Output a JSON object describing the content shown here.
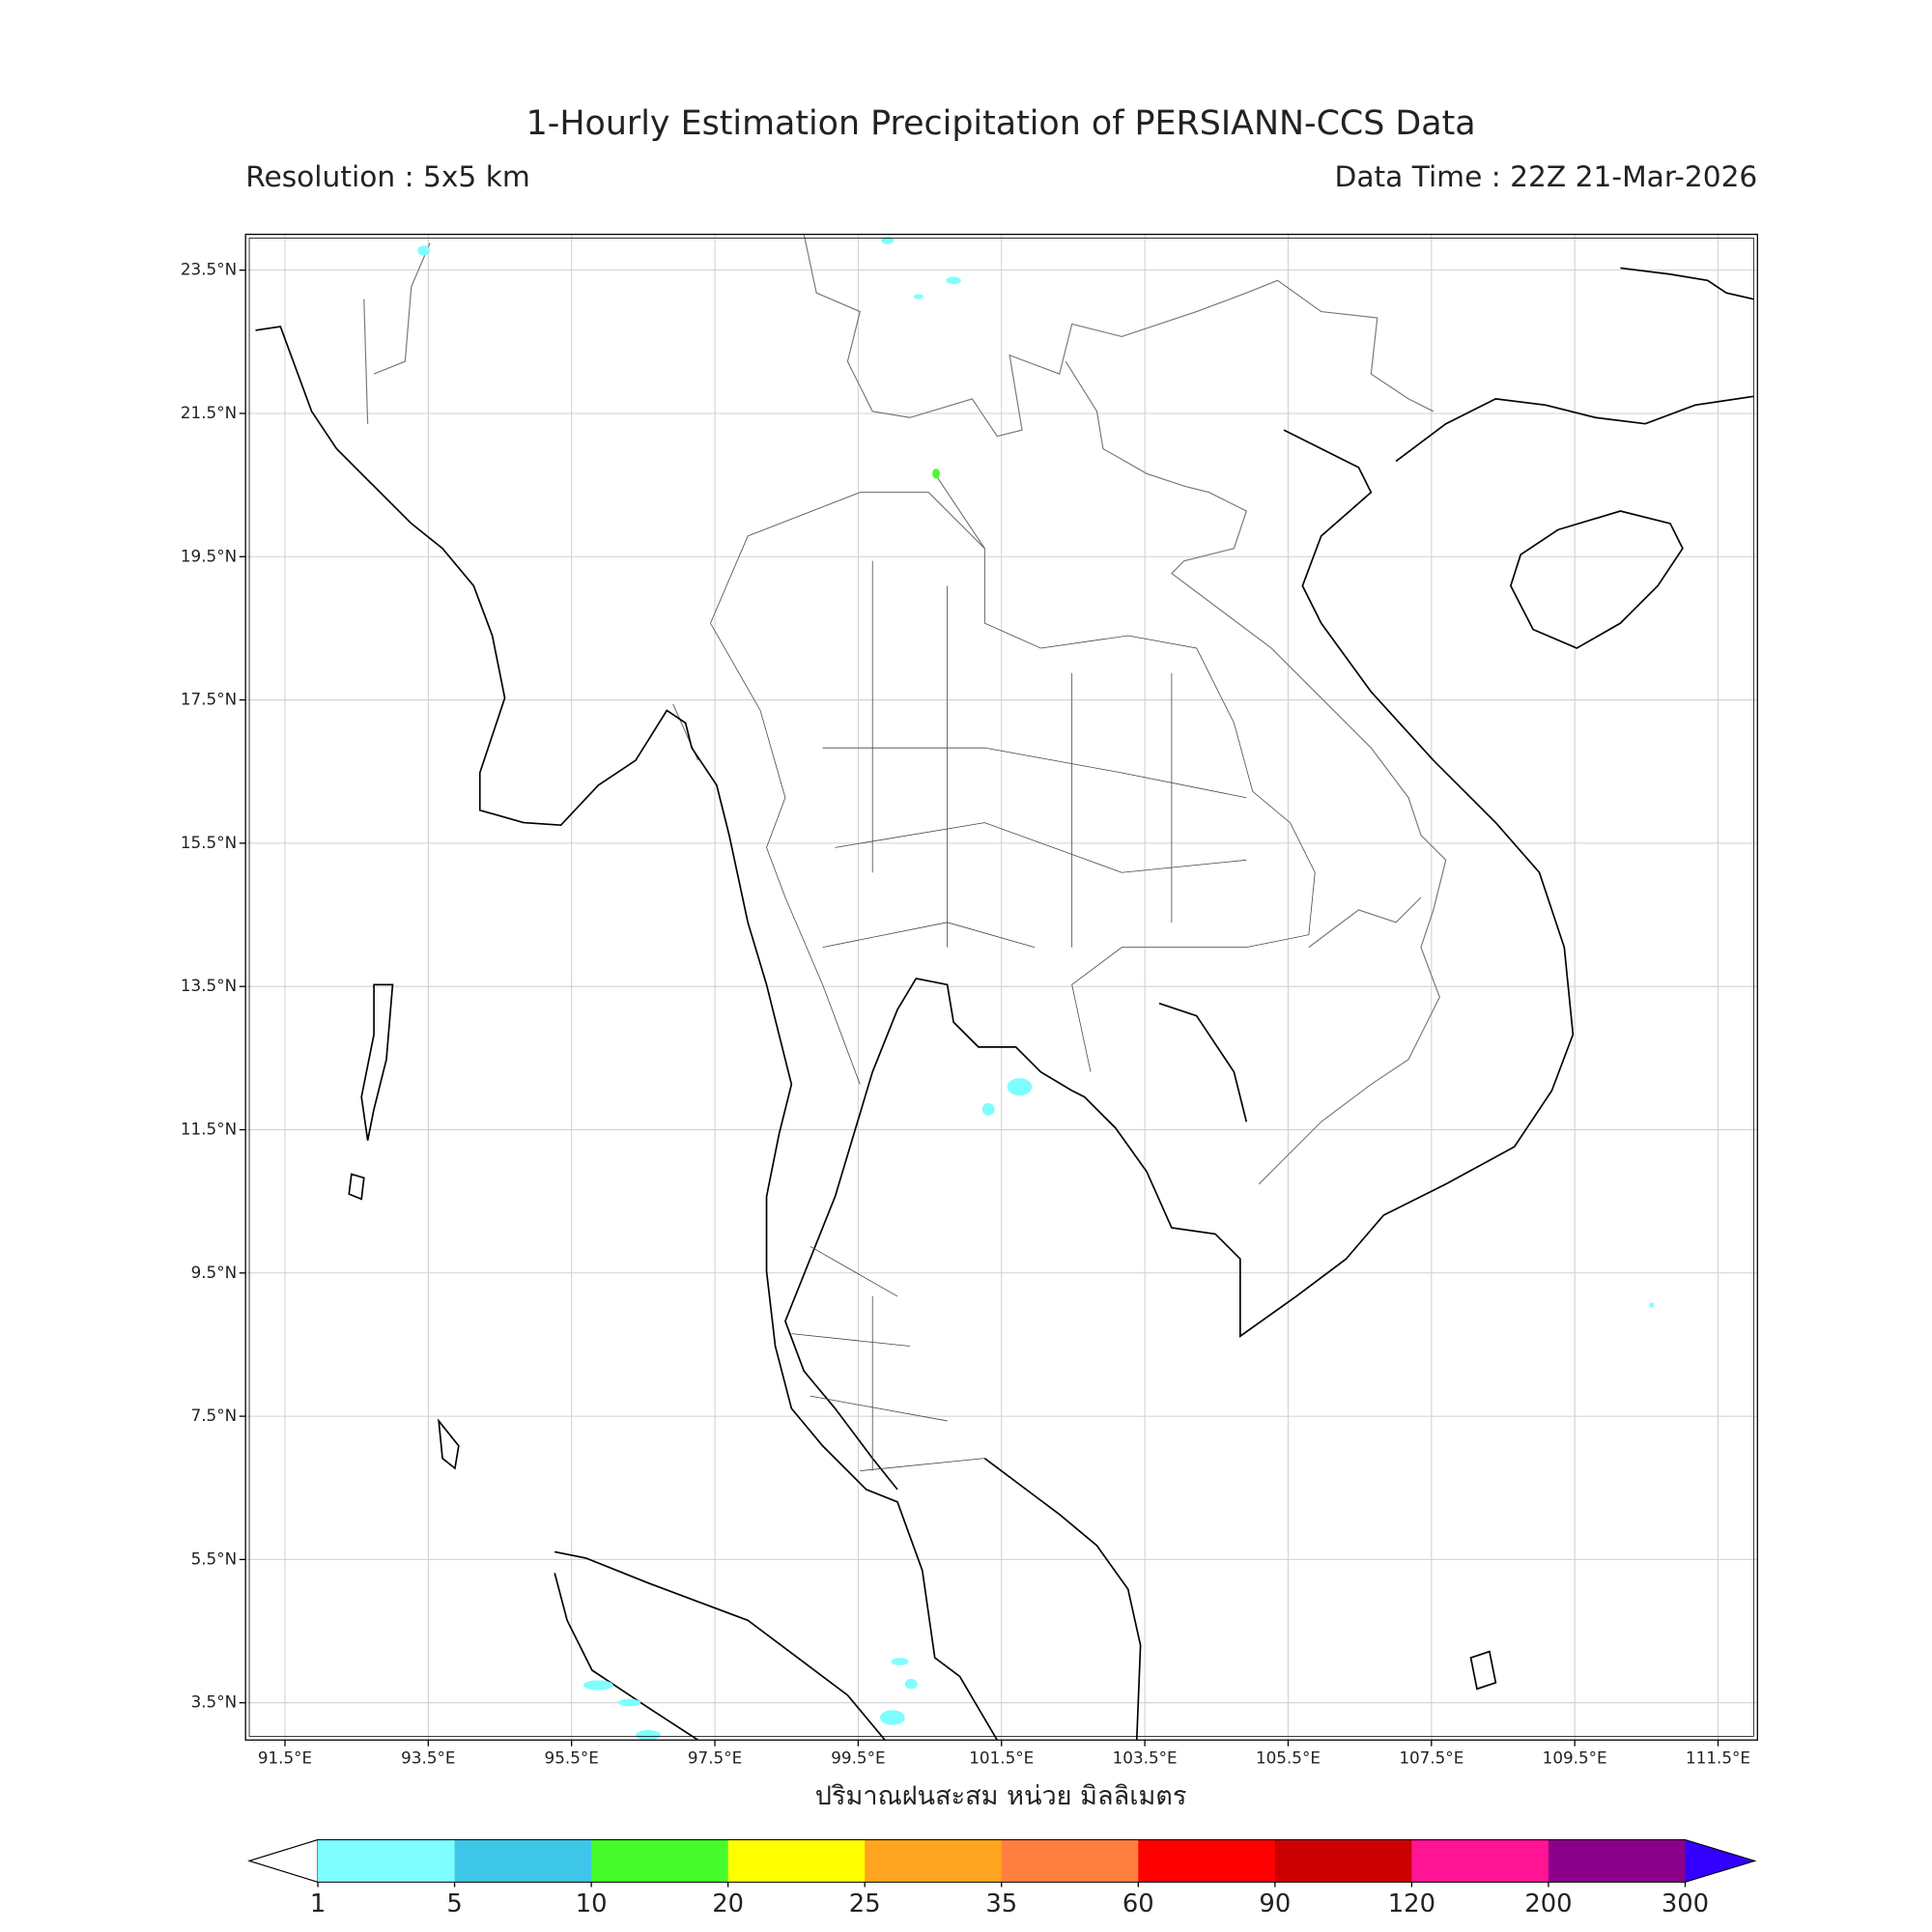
{
  "map": {
    "title": "1-Hourly Estimation Precipitation of PERSIANN-CCS Data",
    "resolution": "Resolution : 5x5 km",
    "data_time": "Data Time : 22Z 21-Mar-2026",
    "lonlim": [
      90.95,
      112.05
    ],
    "latlim": [
      2.98,
      24.0
    ],
    "lon_ticks": [
      {
        "value": 91.5,
        "label": "91.5°E"
      },
      {
        "value": 93.5,
        "label": "93.5°E"
      },
      {
        "value": 95.5,
        "label": "95.5°E"
      },
      {
        "value": 97.5,
        "label": "97.5°E"
      },
      {
        "value": 99.5,
        "label": "99.5°E"
      },
      {
        "value": 101.5,
        "label": "101.5°E"
      },
      {
        "value": 103.5,
        "label": "103.5°E"
      },
      {
        "value": 105.5,
        "label": "105.5°E"
      },
      {
        "value": 107.5,
        "label": "107.5°E"
      },
      {
        "value": 109.5,
        "label": "109.5°E"
      },
      {
        "value": 111.5,
        "label": "111.5°E"
      }
    ],
    "lat_ticks": [
      {
        "value": 23.5,
        "label": "23.5°N"
      },
      {
        "value": 21.5,
        "label": "21.5°N"
      },
      {
        "value": 19.5,
        "label": "19.5°N"
      },
      {
        "value": 17.5,
        "label": "17.5°N"
      },
      {
        "value": 15.5,
        "label": "15.5°N"
      },
      {
        "value": 13.5,
        "label": "13.5°N"
      },
      {
        "value": 11.5,
        "label": "11.5°N"
      },
      {
        "value": 9.5,
        "label": "9.5°N"
      },
      {
        "value": 7.5,
        "label": "7.5°N"
      },
      {
        "value": 5.5,
        "label": "5.5°N"
      },
      {
        "value": 3.5,
        "label": "3.5°N"
      }
    ],
    "grid": true,
    "colorbar": {
      "label": "ปริมาณฝนสะสม หน่วย มิลลิเมตร",
      "levels": [
        1,
        5,
        10,
        20,
        25,
        35,
        60,
        90,
        120,
        200,
        300
      ],
      "colors": [
        "#7ffeff",
        "#3ec6e8",
        "#46fb2c",
        "#ffff00",
        "#ffa51f",
        "#ff7f3f",
        "#ff0000",
        "#cc0000",
        "#ff1493",
        "#8b008b"
      ],
      "under_color": "#ffffff",
      "over_color": "#3300ff"
    }
  }
}
